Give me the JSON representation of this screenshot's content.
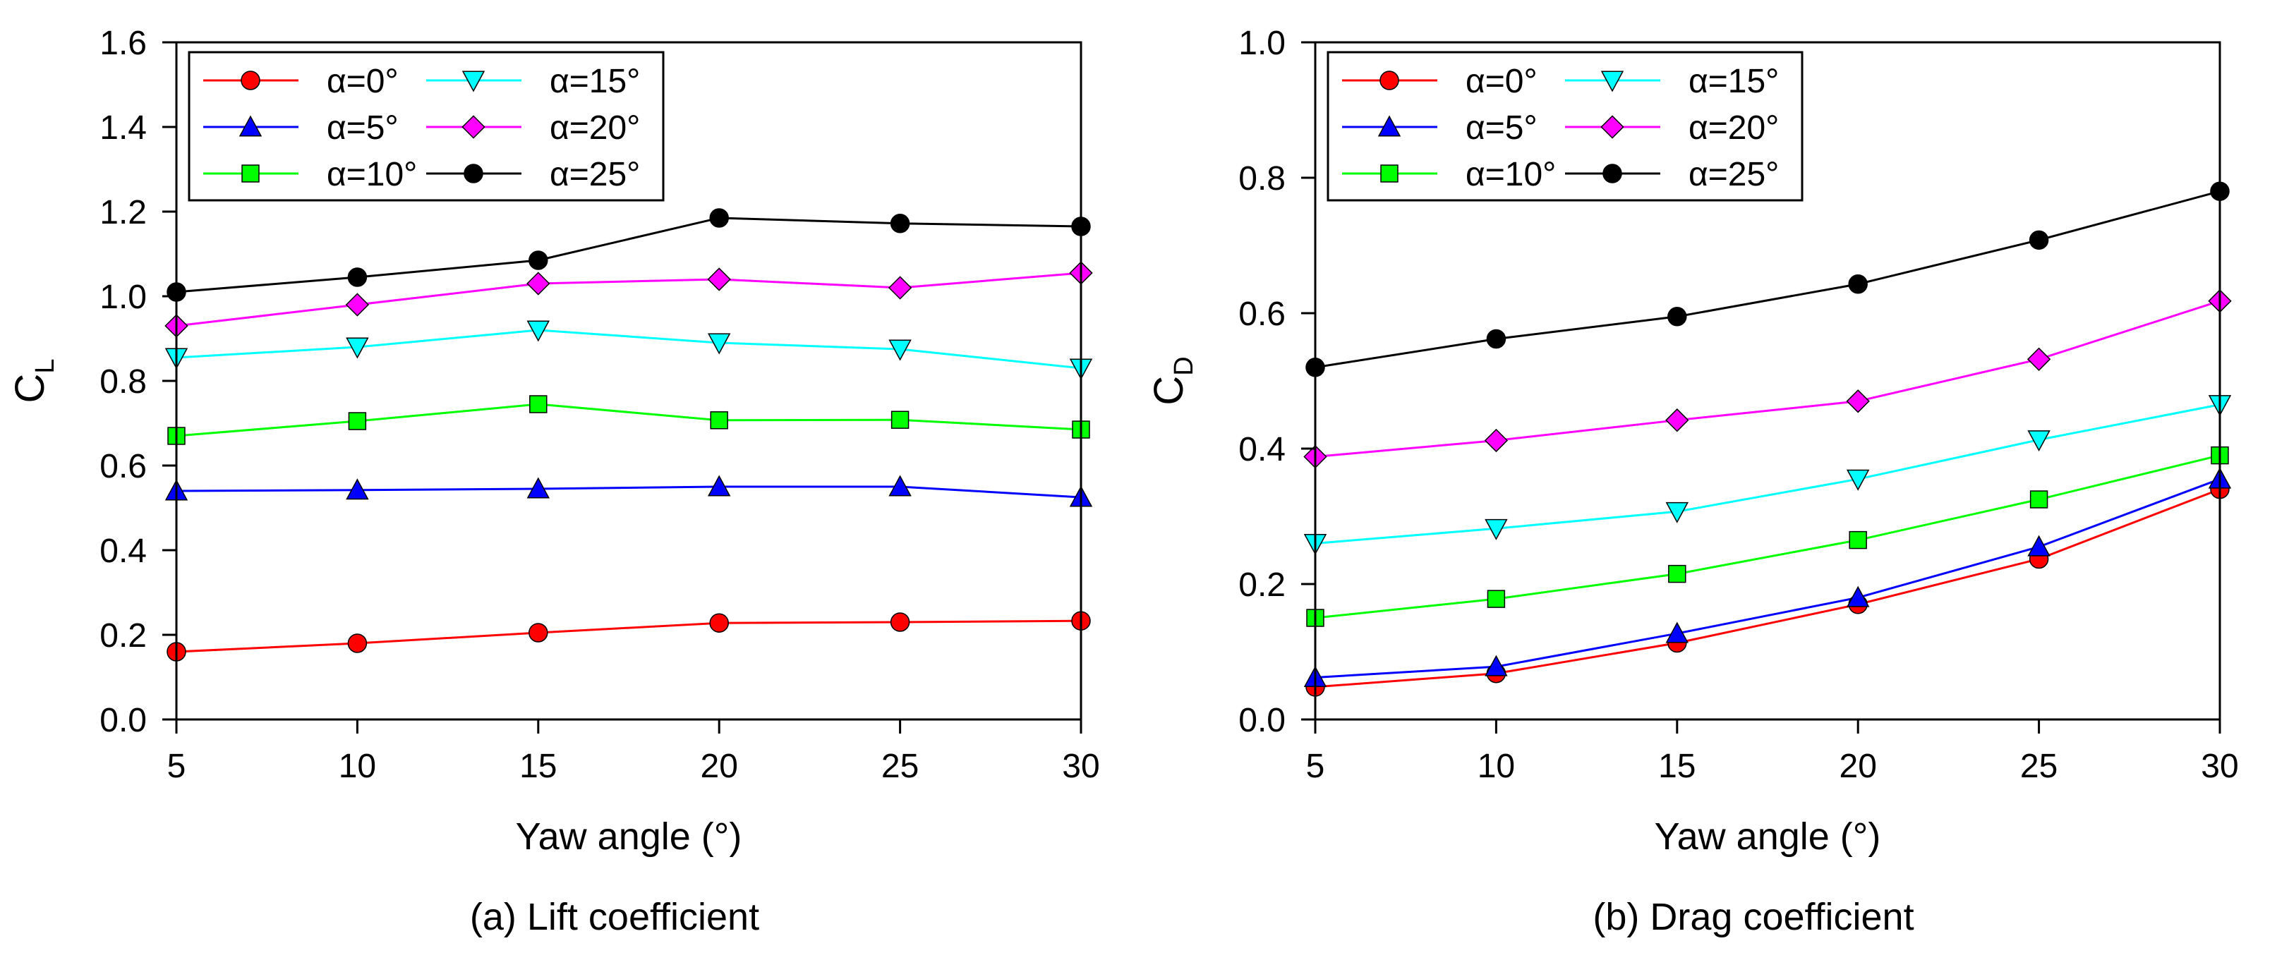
{
  "chart_data": [
    {
      "type": "line",
      "caption": "(a) Lift coefficient",
      "xlabel": "Yaw angle (°)",
      "ylabel_main": "C",
      "ylabel_sub": "L",
      "xlim": [
        5,
        30
      ],
      "ylim": [
        0.0,
        1.6
      ],
      "xticks": [
        5,
        10,
        15,
        20,
        25,
        30
      ],
      "xtick_labels": [
        "5",
        "10",
        "15",
        "20",
        "25",
        "30"
      ],
      "yticks": [
        0.0,
        0.2,
        0.4,
        0.6,
        0.8,
        1.0,
        1.2,
        1.4,
        1.6
      ],
      "ytick_labels": [
        "0.0",
        "0.2",
        "0.4",
        "0.6",
        "0.8",
        "1.0",
        "1.2",
        "1.4",
        "1.6"
      ],
      "grid": false,
      "legend_position": "top-left",
      "x": [
        5,
        10,
        15,
        20,
        25,
        30
      ],
      "series": [
        {
          "name": "α=0°",
          "color": "#ff0000",
          "marker": "circle",
          "values": [
            0.16,
            0.18,
            0.205,
            0.228,
            0.23,
            0.233
          ]
        },
        {
          "name": "α=5°",
          "color": "#0000ff",
          "marker": "triangle-up",
          "values": [
            0.54,
            0.542,
            0.545,
            0.55,
            0.55,
            0.525
          ]
        },
        {
          "name": "α=10°",
          "color": "#00ff00",
          "marker": "square",
          "values": [
            0.67,
            0.705,
            0.745,
            0.707,
            0.708,
            0.685
          ]
        },
        {
          "name": "α=15°",
          "color": "#00ffff",
          "marker": "triangle-down",
          "values": [
            0.855,
            0.88,
            0.92,
            0.89,
            0.875,
            0.83
          ]
        },
        {
          "name": "α=20°",
          "color": "#ff00ff",
          "marker": "diamond",
          "values": [
            0.93,
            0.98,
            1.03,
            1.04,
            1.02,
            1.055
          ]
        },
        {
          "name": "α=25°",
          "color": "#000000",
          "marker": "circle",
          "values": [
            1.01,
            1.045,
            1.085,
            1.185,
            1.172,
            1.165
          ]
        }
      ]
    },
    {
      "type": "line",
      "caption": "(b) Drag coefficient",
      "xlabel": "Yaw angle (°)",
      "ylabel_main": "C",
      "ylabel_sub": "D",
      "xlim": [
        5,
        30
      ],
      "ylim": [
        0.0,
        1.0
      ],
      "xticks": [
        5,
        10,
        15,
        20,
        25,
        30
      ],
      "xtick_labels": [
        "5",
        "10",
        "15",
        "20",
        "25",
        "30"
      ],
      "yticks": [
        0.0,
        0.2,
        0.4,
        0.6,
        0.8,
        1.0
      ],
      "ytick_labels": [
        "0.0",
        "0.2",
        "0.4",
        "0.6",
        "0.8",
        "1.0"
      ],
      "grid": false,
      "legend_position": "top-left",
      "x": [
        5,
        10,
        15,
        20,
        25,
        30
      ],
      "series": [
        {
          "name": "α=0°",
          "color": "#ff0000",
          "marker": "circle",
          "values": [
            0.048,
            0.068,
            0.113,
            0.17,
            0.237,
            0.34
          ]
        },
        {
          "name": "α=5°",
          "color": "#0000ff",
          "marker": "triangle-up",
          "values": [
            0.062,
            0.078,
            0.127,
            0.18,
            0.255,
            0.355
          ]
        },
        {
          "name": "α=10°",
          "color": "#00ff00",
          "marker": "square",
          "values": [
            0.15,
            0.178,
            0.215,
            0.265,
            0.325,
            0.39
          ]
        },
        {
          "name": "α=15°",
          "color": "#00ffff",
          "marker": "triangle-down",
          "values": [
            0.26,
            0.282,
            0.307,
            0.355,
            0.413,
            0.465
          ]
        },
        {
          "name": "α=20°",
          "color": "#ff00ff",
          "marker": "diamond",
          "values": [
            0.388,
            0.412,
            0.442,
            0.47,
            0.532,
            0.618
          ]
        },
        {
          "name": "α=25°",
          "color": "#000000",
          "marker": "circle",
          "values": [
            0.52,
            0.562,
            0.595,
            0.643,
            0.708,
            0.78
          ]
        }
      ]
    }
  ]
}
